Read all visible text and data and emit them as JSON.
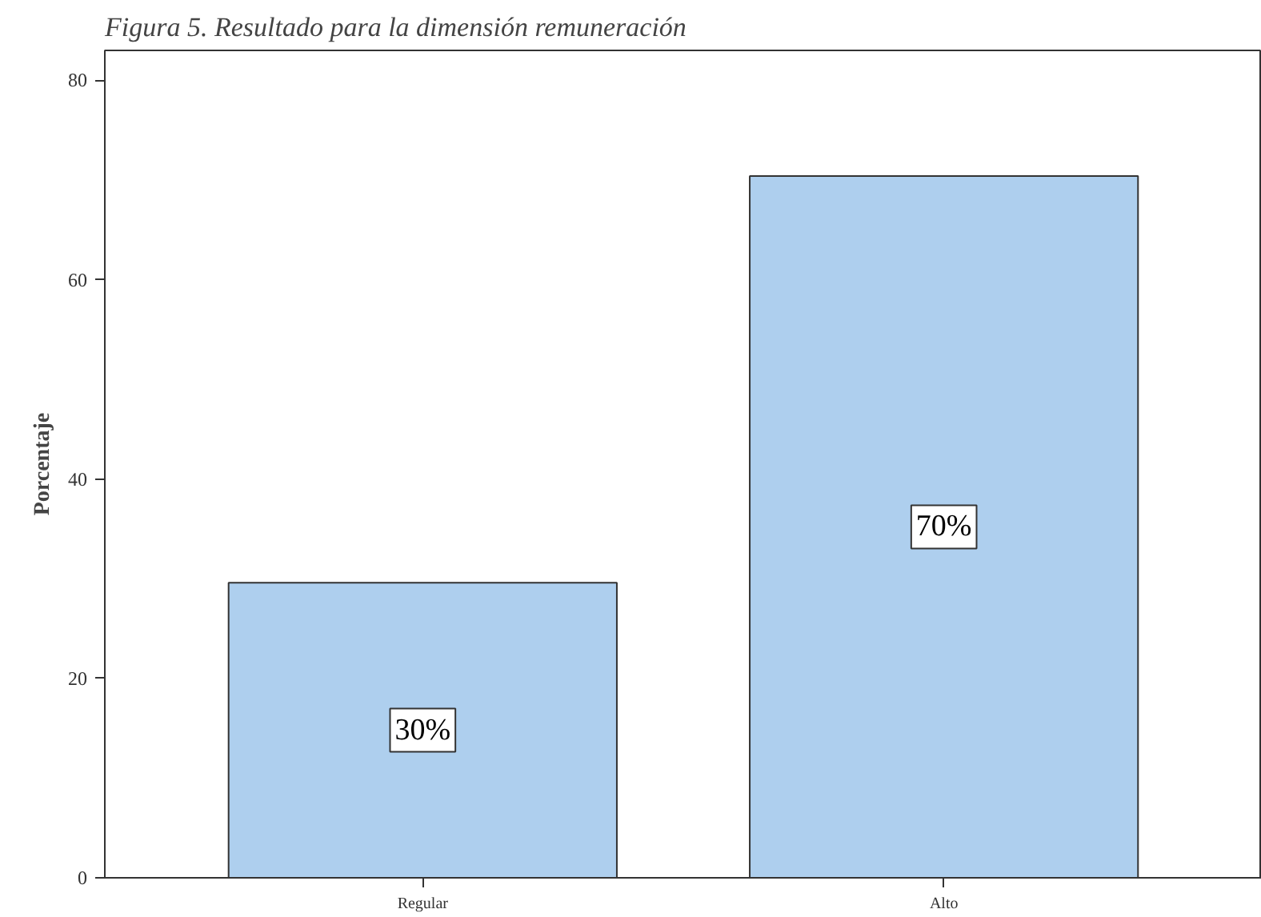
{
  "chart_data": {
    "type": "bar",
    "title": "Figura 5.  Resultado para la dimensión remuneración",
    "ylabel": "Porcentaje",
    "categories": [
      "Regular",
      "Alto"
    ],
    "values": [
      29.6,
      70.4
    ],
    "color": "#aecfee",
    "value_labels": [
      "30%",
      "70%"
    ],
    "ylim": [
      0,
      83
    ],
    "yticks": [
      0,
      20,
      40,
      60,
      80
    ],
    "grid": false
  }
}
